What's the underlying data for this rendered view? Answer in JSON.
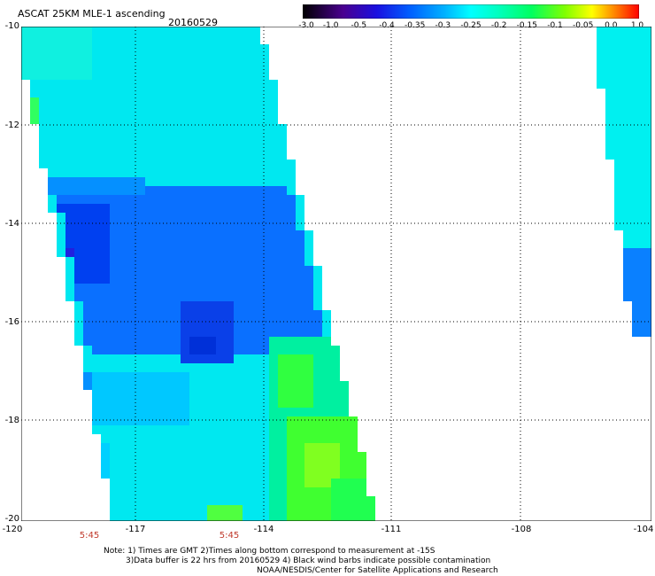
{
  "header": {
    "title": "ASCAT 25KM MLE-1 ascending",
    "date": "20160529"
  },
  "colorbar": {
    "ticks": [
      "-3.0",
      "-1.0",
      "-0.5",
      "-0.4",
      "-0.35",
      "-0.3",
      "-0.25",
      "-0.2",
      "-0.15",
      "-0.1",
      "-0.05",
      "0.0",
      "1.0"
    ],
    "colors": [
      "#2a0040",
      "#4a0090",
      "#1a00d0",
      "#0040ff",
      "#2080ff",
      "#00c0ff",
      "#00ffe0",
      "#00ffa0",
      "#00ff40",
      "#80ff00",
      "#ffff00",
      "#ff8000",
      "#ff0000"
    ]
  },
  "axes": {
    "y_labels": [
      "-10",
      "-12",
      "-14",
      "-16",
      "-18",
      "-20"
    ],
    "x_labels": [
      "-120",
      "-117",
      "-114",
      "-111",
      "-108",
      "-104"
    ]
  },
  "time_labels": [
    "5:45",
    "5:45"
  ],
  "notes": {
    "line1": "Note: 1) Times are GMT 2)Times along bottom correspond to measurement at -15S",
    "line2": "3)Data buffer is 22 hrs from 20160529 4) Black wind barbs indicate possible contamination",
    "line3": "NOAA/NESDIS/Center for Satellite Applications and Research"
  }
}
